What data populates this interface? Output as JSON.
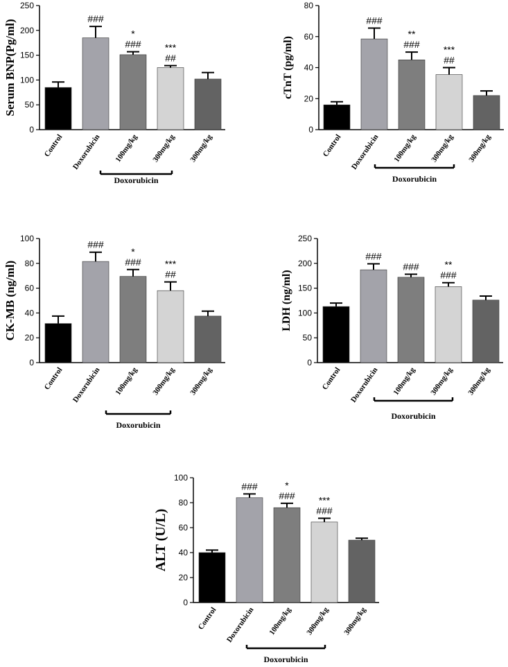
{
  "chart_data": [
    {
      "type": "bar",
      "ylabel": "Serum BNP(Pg/ml)",
      "ylim": [
        0,
        250
      ],
      "yticks": [
        0,
        50,
        100,
        150,
        200,
        250
      ],
      "categories": [
        "Control",
        "Doxorubicin",
        "100mg/kg",
        "300mg/kg",
        "300mg/kg"
      ],
      "values": [
        85,
        185,
        151,
        125,
        102
      ],
      "errors": [
        11,
        23,
        6,
        4,
        13
      ],
      "annotations": [
        [],
        [
          "###"
        ],
        [
          "*",
          "###"
        ],
        [
          "***",
          "##"
        ],
        []
      ],
      "colors": [
        "#000000",
        "#a3a3aa",
        "#7e7e7e",
        "#d4d4d4",
        "#636363"
      ],
      "group_label": "Doxorubicin"
    },
    {
      "type": "bar",
      "ylabel": "cTnT (pg/ml)",
      "ylim": [
        0,
        80
      ],
      "yticks": [
        0,
        20,
        40,
        60,
        80
      ],
      "categories": [
        "Control",
        "Doxorubicin",
        "100mg/kg",
        "300mg/kg",
        "300mg/kg"
      ],
      "values": [
        16,
        58.5,
        45,
        35.5,
        22
      ],
      "errors": [
        2,
        7,
        5,
        4.5,
        3
      ],
      "annotations": [
        [],
        [
          "###"
        ],
        [
          "**",
          "###"
        ],
        [
          "***",
          "##"
        ],
        []
      ],
      "colors": [
        "#000000",
        "#a3a3aa",
        "#7e7e7e",
        "#d4d4d4",
        "#636363"
      ],
      "group_label": "Doxorubicin"
    },
    {
      "type": "bar",
      "ylabel": "CK-MB (ng/ml)",
      "ylim": [
        0,
        100
      ],
      "yticks": [
        0,
        20,
        40,
        60,
        80,
        100
      ],
      "categories": [
        "Control",
        "Doxorubicin",
        "100mg/kg",
        "300mg/kg",
        "300mg/kg"
      ],
      "values": [
        31.5,
        81.5,
        69.5,
        58,
        37.5
      ],
      "errors": [
        6,
        7.5,
        5.5,
        7,
        4
      ],
      "annotations": [
        [],
        [
          "###"
        ],
        [
          "*",
          "###"
        ],
        [
          "***",
          "##"
        ],
        []
      ],
      "colors": [
        "#000000",
        "#a3a3aa",
        "#7e7e7e",
        "#d4d4d4",
        "#636363"
      ],
      "group_label": "Doxorubicin"
    },
    {
      "type": "bar",
      "ylabel": "LDH (ng/ml)",
      "ylim": [
        0,
        250
      ],
      "yticks": [
        0,
        50,
        100,
        150,
        200,
        250
      ],
      "categories": [
        "Control",
        "Doxorubicin",
        "100mg/kg",
        "300mg/kg",
        "300mg/kg"
      ],
      "values": [
        113,
        187,
        172,
        153,
        126
      ],
      "errors": [
        7,
        12,
        6,
        8,
        8
      ],
      "annotations": [
        [],
        [
          "###"
        ],
        [
          "###"
        ],
        [
          "**",
          "###"
        ],
        []
      ],
      "colors": [
        "#000000",
        "#a3a3aa",
        "#7e7e7e",
        "#d4d4d4",
        "#636363"
      ],
      "group_label": "Doxorubicin"
    },
    {
      "type": "bar",
      "ylabel": "ALT (U/L)",
      "ylim": [
        0,
        100
      ],
      "yticks": [
        0,
        20,
        40,
        60,
        80,
        100
      ],
      "categories": [
        "Control",
        "Doxorubicin",
        "100mg/kg",
        "300mg/kg",
        "300mg/kg"
      ],
      "values": [
        40,
        84,
        76,
        64.5,
        50
      ],
      "errors": [
        2,
        3,
        3.5,
        3,
        1.5
      ],
      "annotations": [
        [],
        [
          "###"
        ],
        [
          "*",
          "###"
        ],
        [
          "***",
          "###"
        ],
        []
      ],
      "colors": [
        "#000000",
        "#a3a3aa",
        "#7e7e7e",
        "#d4d4d4",
        "#636363"
      ],
      "group_label": "Doxorubicin"
    }
  ]
}
